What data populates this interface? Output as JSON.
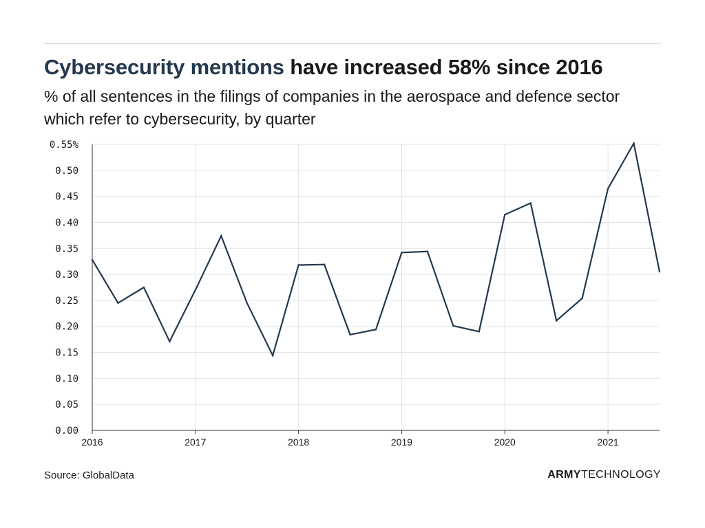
{
  "header": {
    "title_highlight": "Cybersecurity mentions",
    "title_rest": " have increased 58% since 2016",
    "subtitle": "% of all sentences in the filings of companies in the aerospace and defence sector which refer to cybersecurity, by quarter"
  },
  "footer": {
    "source": "Source: GlobalData",
    "brand_bold": "ARMY",
    "brand_regular": "TECHNOLOGY"
  },
  "colors": {
    "line": "#24384f",
    "grid": "#e3e3e3",
    "axis": "#333333"
  },
  "chart_data": {
    "type": "line",
    "title": "Cybersecurity mentions have increased 58% since 2016",
    "subtitle": "% of all sentences in the filings of companies in the aerospace and defence sector which refer to cybersecurity, by quarter",
    "xlabel": "",
    "ylabel": "",
    "grid": true,
    "ylim": [
      0,
      0.55
    ],
    "y_ticks": [
      "0.00",
      "0.05",
      "0.10",
      "0.15",
      "0.20",
      "0.25",
      "0.30",
      "0.35",
      "0.40",
      "0.45",
      "0.50",
      "0.55%"
    ],
    "x_ticks": [
      "2016",
      "2017",
      "2018",
      "2019",
      "2020",
      "2021"
    ],
    "x": [
      "2016-Q1",
      "2016-Q2",
      "2016-Q3",
      "2016-Q4",
      "2017-Q1",
      "2017-Q2",
      "2017-Q3",
      "2017-Q4",
      "2018-Q1",
      "2018-Q2",
      "2018-Q3",
      "2018-Q4",
      "2019-Q1",
      "2019-Q2",
      "2019-Q3",
      "2019-Q4",
      "2020-Q1",
      "2020-Q2",
      "2020-Q3",
      "2020-Q4",
      "2021-Q1",
      "2021-Q2",
      "2021-Q3"
    ],
    "series": [
      {
        "values": [
          0.328,
          0.245,
          0.275,
          0.171,
          0.27,
          0.374,
          0.245,
          0.144,
          0.318,
          0.319,
          0.184,
          0.194,
          0.342,
          0.344,
          0.201,
          0.19,
          0.415,
          0.437,
          0.211,
          0.254,
          0.465,
          0.552,
          0.305
        ]
      }
    ]
  }
}
